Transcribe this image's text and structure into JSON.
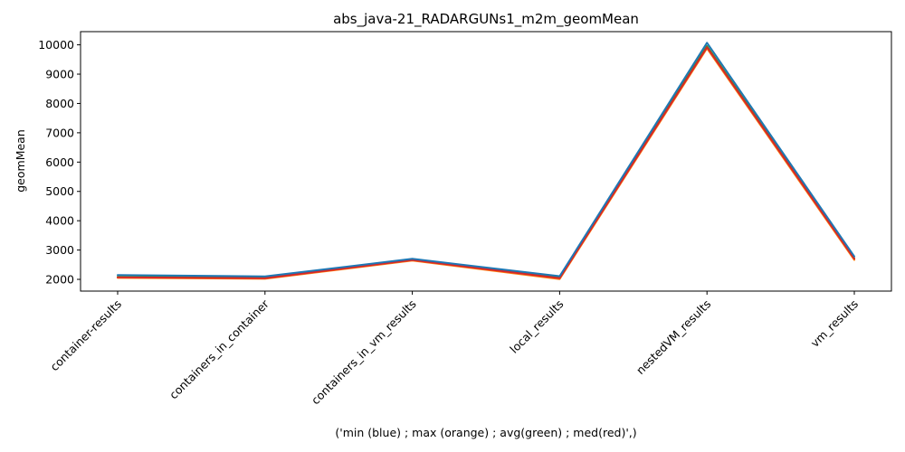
{
  "chart_data": {
    "type": "line",
    "title": "abs_java-21_RADARGUNs1_m2m_geomMean",
    "xlabel": "('min (blue) ; max (orange) ; avg(green) ; med(red)',)",
    "ylabel": "geomMean",
    "categories": [
      "container-results",
      "containers_in_container",
      "containers_in_vm_results",
      "local_results",
      "nestedVM_results",
      "vm_results"
    ],
    "ylim": [
      1600,
      10450
    ],
    "yticks": [
      2000,
      3000,
      4000,
      5000,
      6000,
      7000,
      8000,
      9000,
      10000
    ],
    "grid": false,
    "series": [
      {
        "color": "#1f77b4",
        "values": [
          2150,
          2100,
          2700,
          2110,
          10070,
          2780
        ]
      },
      {
        "color": "#ff7f0e",
        "values": [
          2050,
          2020,
          2640,
          2010,
          9880,
          2660
        ]
      },
      {
        "color": "#2ca02c",
        "values": [
          2090,
          2060,
          2670,
          2060,
          9960,
          2720
        ]
      },
      {
        "color": "#d62728",
        "values": [
          2070,
          2040,
          2660,
          2040,
          9920,
          2700
        ]
      }
    ]
  }
}
